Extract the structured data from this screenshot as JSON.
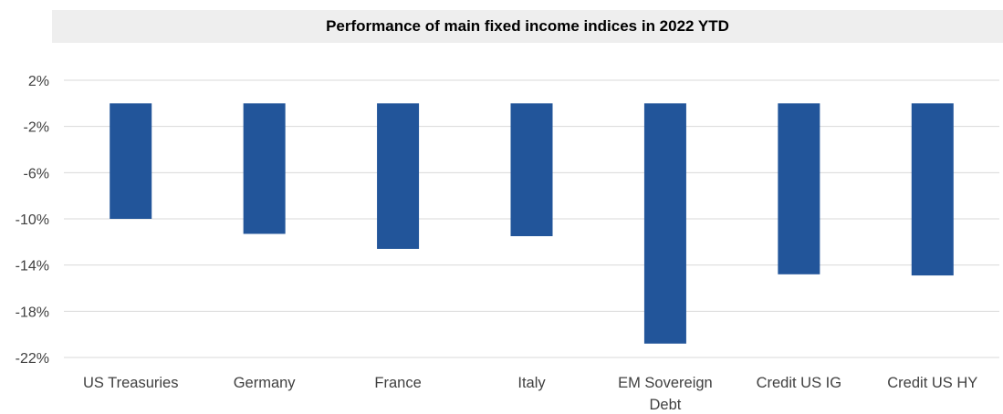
{
  "chart_data": {
    "type": "bar",
    "title": "Performance of main fixed income indices in 2022 YTD",
    "categories": [
      "US Treasuries",
      "Germany",
      "France",
      "Italy",
      "EM Sovereign Debt",
      "Credit US IG",
      "Credit US HY"
    ],
    "category_lines": [
      [
        "US Treasuries"
      ],
      [
        "Germany"
      ],
      [
        "France"
      ],
      [
        "Italy"
      ],
      [
        "EM Sovereign",
        "Debt"
      ],
      [
        "Credit US IG"
      ],
      [
        "Credit US HY"
      ]
    ],
    "values": [
      -10.0,
      -11.3,
      -12.6,
      -11.5,
      -20.8,
      -14.8,
      -14.9
    ],
    "ylim": [
      -22,
      2
    ],
    "yticks": [
      2,
      -2,
      -6,
      -10,
      -14,
      -18,
      -22
    ],
    "ytick_labels": [
      "2%",
      "-2%",
      "-6%",
      "-10%",
      "-14%",
      "-18%",
      "-22%"
    ],
    "xlabel": "",
    "ylabel": "",
    "grid": true,
    "legend": "none",
    "bar_color": "#22559a"
  }
}
